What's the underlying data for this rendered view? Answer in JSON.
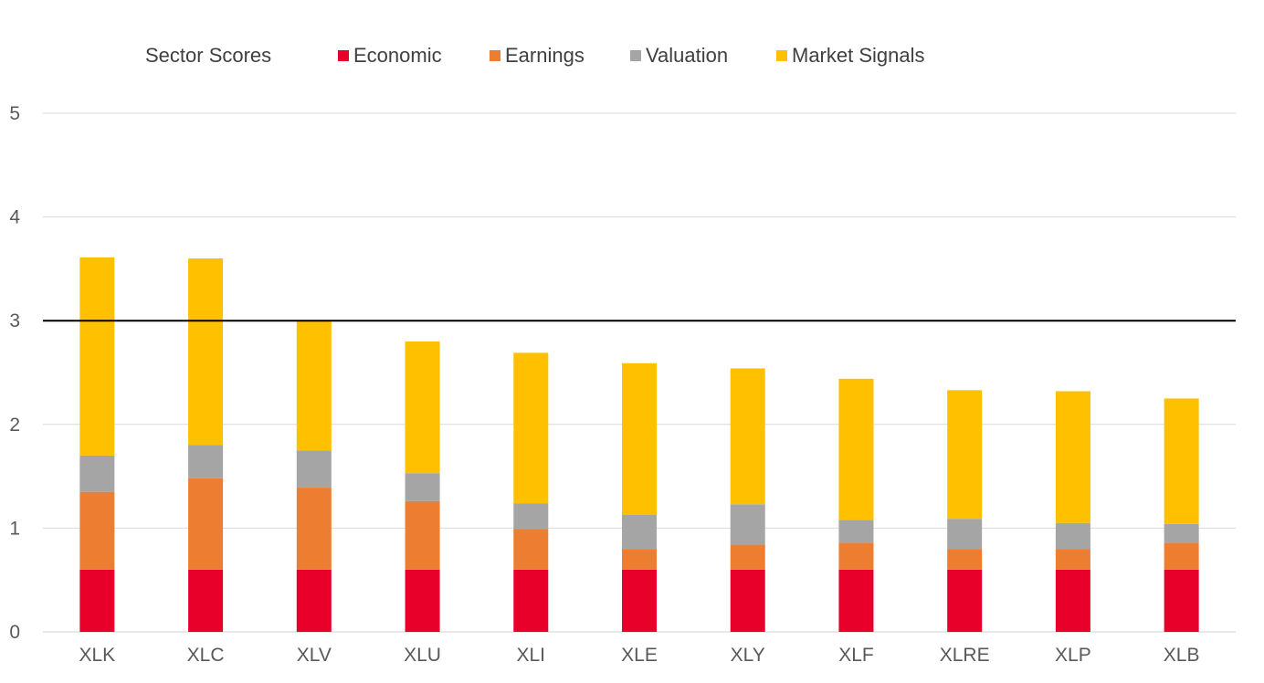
{
  "chart_data": {
    "type": "bar",
    "stacked": true,
    "title": "Sector Scores",
    "xlabel": "",
    "ylabel": "",
    "ylim": [
      0,
      5
    ],
    "yticks": [
      0,
      1,
      2,
      3,
      4,
      5
    ],
    "grid": true,
    "legend_position": "top",
    "reference_line": {
      "y": 3,
      "color": "#000000"
    },
    "categories": [
      "XLK",
      "XLC",
      "XLV",
      "XLU",
      "XLI",
      "XLE",
      "XLY",
      "XLF",
      "XLRE",
      "XLP",
      "XLB"
    ],
    "series": [
      {
        "name": "Economic",
        "color": "#E8002A",
        "values": [
          0.6,
          0.6,
          0.6,
          0.6,
          0.6,
          0.6,
          0.6,
          0.6,
          0.6,
          0.6,
          0.6
        ]
      },
      {
        "name": "Earnings",
        "color": "#ED7D31",
        "values": [
          0.75,
          0.88,
          0.79,
          0.66,
          0.39,
          0.2,
          0.24,
          0.26,
          0.2,
          0.2,
          0.26
        ]
      },
      {
        "name": "Valuation",
        "color": "#A5A5A5",
        "values": [
          0.35,
          0.32,
          0.36,
          0.27,
          0.25,
          0.33,
          0.39,
          0.22,
          0.29,
          0.25,
          0.18
        ]
      },
      {
        "name": "Market Signals",
        "color": "#FFC000",
        "values": [
          1.91,
          1.8,
          1.25,
          1.27,
          1.45,
          1.46,
          1.31,
          1.36,
          1.24,
          1.27,
          1.21
        ]
      }
    ]
  }
}
